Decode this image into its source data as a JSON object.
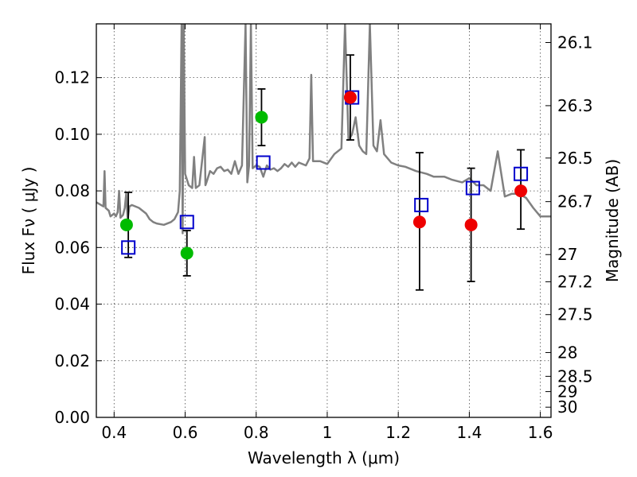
{
  "chart_data": {
    "type": "scatter",
    "title": "",
    "xlabel": "Wavelength  λ (μm)",
    "ylabel": "Flux  Fν  ( μJy )",
    "ylabel_right": "Magnitude (AB)",
    "xlim": [
      0.35,
      1.63
    ],
    "ylim": [
      0.0,
      0.139
    ],
    "grid": true,
    "x_ticks": [
      0.4,
      0.6,
      0.8,
      1.0,
      1.2,
      1.4,
      1.6
    ],
    "x_tick_labels": [
      "0.4",
      "0.6",
      "0.8",
      "1",
      "1.2",
      "1.4",
      "1.6"
    ],
    "y_ticks": [
      0.0,
      0.02,
      0.04,
      0.06,
      0.08,
      0.1,
      0.12
    ],
    "y_tick_labels": [
      "0.00",
      "0.02",
      "0.04",
      "0.06",
      "0.08",
      "0.10",
      "0.12"
    ],
    "right_ticks": [
      {
        "flux": 0.1324,
        "label": "26.1"
      },
      {
        "flux": 0.1101,
        "label": "26.3"
      },
      {
        "flux": 0.0916,
        "label": "26.5"
      },
      {
        "flux": 0.0762,
        "label": "26.7"
      },
      {
        "flux": 0.0575,
        "label": "27"
      },
      {
        "flux": 0.0479,
        "label": "27.2"
      },
      {
        "flux": 0.0363,
        "label": "27.5"
      },
      {
        "flux": 0.0229,
        "label": "28"
      },
      {
        "flux": 0.0145,
        "label": "28.5"
      },
      {
        "flux": 0.0091,
        "label": "29"
      },
      {
        "flux": 0.0036,
        "label": "30"
      }
    ],
    "series": [
      {
        "marker": "hollow-square",
        "color": "#0000cc",
        "x": [
          0.44,
          0.605,
          0.82,
          1.07,
          1.265,
          1.41,
          1.545
        ],
        "y": [
          0.06,
          0.069,
          0.09,
          0.113,
          0.075,
          0.081,
          0.086
        ],
        "err": [
          0.0035,
          0.009,
          0.009,
          0.015,
          0.016,
          0.012,
          0.011
        ]
      },
      {
        "marker": "filled-circle",
        "color": "#00bb00",
        "x": [
          0.435,
          0.605,
          0.815
        ],
        "y": [
          0.068,
          0.058,
          0.106
        ]
      },
      {
        "marker": "filled-circle",
        "color": "#ee0000",
        "x": [
          1.065,
          1.26,
          1.405,
          1.545
        ],
        "y": [
          0.113,
          0.069,
          0.068,
          0.08
        ]
      }
    ],
    "error_bars": [
      {
        "x": 0.44,
        "low": 0.0565,
        "high": 0.0795
      },
      {
        "x": 0.605,
        "low": 0.05,
        "high": 0.066
      },
      {
        "x": 0.815,
        "low": 0.096,
        "high": 0.116
      },
      {
        "x": 1.065,
        "low": 0.098,
        "high": 0.128
      },
      {
        "x": 1.26,
        "low": 0.045,
        "high": 0.0935
      },
      {
        "x": 1.405,
        "low": 0.048,
        "high": 0.088
      },
      {
        "x": 1.545,
        "low": 0.0665,
        "high": 0.0945
      }
    ],
    "spectrum": {
      "color": "#808080",
      "x": [
        0.35,
        0.37,
        0.373,
        0.376,
        0.385,
        0.39,
        0.395,
        0.4,
        0.405,
        0.41,
        0.414,
        0.418,
        0.425,
        0.43,
        0.434,
        0.438,
        0.443,
        0.45,
        0.47,
        0.49,
        0.5,
        0.51,
        0.52,
        0.54,
        0.56,
        0.57,
        0.58,
        0.585,
        0.59,
        0.593,
        0.596,
        0.6,
        0.61,
        0.62,
        0.625,
        0.63,
        0.64,
        0.655,
        0.657,
        0.66,
        0.67,
        0.68,
        0.69,
        0.7,
        0.71,
        0.72,
        0.73,
        0.74,
        0.75,
        0.76,
        0.77,
        0.775,
        0.78,
        0.785,
        0.79,
        0.8,
        0.81,
        0.82,
        0.83,
        0.84,
        0.85,
        0.86,
        0.87,
        0.88,
        0.89,
        0.9,
        0.91,
        0.92,
        0.94,
        0.95,
        0.955,
        0.96,
        0.98,
        1.0,
        1.02,
        1.04,
        1.05,
        1.06,
        1.07,
        1.08,
        1.09,
        1.1,
        1.11,
        1.12,
        1.13,
        1.14,
        1.15,
        1.16,
        1.18,
        1.2,
        1.22,
        1.25,
        1.28,
        1.3,
        1.33,
        1.35,
        1.38,
        1.4,
        1.42,
        1.44,
        1.46,
        1.48,
        1.5,
        1.52,
        1.54,
        1.56,
        1.58,
        1.6,
        1.63
      ],
      "y": [
        0.076,
        0.0745,
        0.087,
        0.074,
        0.073,
        0.071,
        0.0715,
        0.072,
        0.071,
        0.0725,
        0.08,
        0.0705,
        0.0715,
        0.074,
        0.079,
        0.07,
        0.0745,
        0.075,
        0.074,
        0.072,
        0.07,
        0.069,
        0.0685,
        0.068,
        0.069,
        0.07,
        0.0725,
        0.08,
        0.139,
        0.065,
        0.139,
        0.086,
        0.082,
        0.081,
        0.092,
        0.081,
        0.082,
        0.099,
        0.082,
        0.083,
        0.087,
        0.086,
        0.088,
        0.0885,
        0.087,
        0.0875,
        0.086,
        0.0905,
        0.086,
        0.089,
        0.139,
        0.083,
        0.089,
        0.139,
        0.088,
        0.089,
        0.0885,
        0.085,
        0.089,
        0.0875,
        0.088,
        0.087,
        0.088,
        0.0895,
        0.0885,
        0.09,
        0.0885,
        0.09,
        0.089,
        0.0915,
        0.121,
        0.0905,
        0.0905,
        0.0895,
        0.093,
        0.095,
        0.139,
        0.098,
        0.1,
        0.106,
        0.096,
        0.094,
        0.093,
        0.139,
        0.096,
        0.094,
        0.105,
        0.093,
        0.09,
        0.089,
        0.0885,
        0.087,
        0.086,
        0.085,
        0.085,
        0.084,
        0.083,
        0.0845,
        0.082,
        0.082,
        0.08,
        0.094,
        0.078,
        0.079,
        0.079,
        0.0775,
        0.074,
        0.071,
        0.071
      ]
    }
  }
}
